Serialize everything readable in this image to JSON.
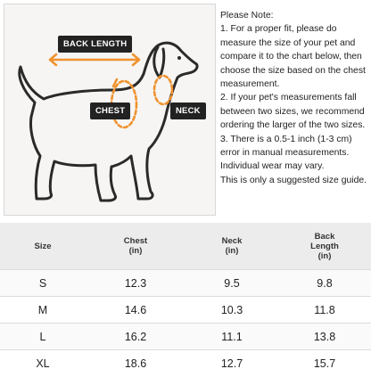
{
  "labels": {
    "back_length": "BACK LENGTH",
    "chest": "CHEST",
    "neck": "NECK"
  },
  "note": {
    "title": "Please Note:",
    "lines": [
      "1. For a proper fit, please do",
      "measure the size of your pet and",
      "compare it to the chart below, then",
      "choose the size based on the chest",
      "measurement.",
      "2. If your pet's measurements fall",
      "between two sizes, we recommend",
      "ordering the larger of the two sizes.",
      "3. There is a 0.5-1 inch (1-3 cm)",
      "error in manual measurements.",
      "Individual wear may vary.",
      "This is only a suggested size guide."
    ]
  },
  "table": {
    "headers": [
      {
        "line1": "Size",
        "line2": "",
        "line3": ""
      },
      {
        "line1": "Chest",
        "line2": "(in)",
        "line3": ""
      },
      {
        "line1": "Neck",
        "line2": "(in)",
        "line3": ""
      },
      {
        "line1": "Back",
        "line2": "Length",
        "line3": "(in)"
      }
    ],
    "rows": [
      {
        "size": "S",
        "chest": "12.3",
        "neck": "9.5",
        "back": "9.8"
      },
      {
        "size": "M",
        "chest": "14.6",
        "neck": "10.3",
        "back": "11.8"
      },
      {
        "size": "L",
        "chest": "16.2",
        "neck": "11.1",
        "back": "13.8"
      },
      {
        "size": "XL",
        "chest": "18.6",
        "neck": "12.7",
        "back": "15.7"
      }
    ]
  },
  "colors": {
    "arrow": "#f0922e",
    "tag_bg": "#222222",
    "panel_bg": "#f6f5f3",
    "header_bg": "#ececec"
  }
}
